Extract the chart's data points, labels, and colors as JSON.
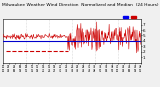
{
  "title": "Milwaukee Weather Wind Direction  Normalized and Median  (24 Hours) (New)",
  "title_fontsize": 3.2,
  "background_color": "#f0f0f0",
  "plot_bg_color": "#ffffff",
  "grid_color": "#bbbbbb",
  "ylim": [
    0,
    8
  ],
  "xlim": [
    0,
    287
  ],
  "median_value": 4.0,
  "median_color": "#0000cc",
  "median_linewidth": 0.8,
  "noise_color": "#cc0000",
  "noise_linewidth": 0.4,
  "dash_color": "#cc0000",
  "dash_linewidth": 0.8,
  "legend_blue_color": "#0000ee",
  "legend_red_color": "#cc0000",
  "ytick_values": [
    1,
    2,
    3,
    4,
    5,
    6,
    7
  ],
  "ytick_fontsize": 3.0,
  "xtick_fontsize": 1.8,
  "n_points": 288,
  "noise_start": 135,
  "noise_mean": 4.8,
  "noise_std": 1.3,
  "early_noise_mean": 4.8,
  "early_noise_std": 0.25,
  "dash_x_start": 5,
  "dash_x_end": 135,
  "dash_y": 2.1,
  "n_xticks": 25,
  "vgrid_positions": [
    48,
    96,
    144,
    192,
    240
  ]
}
